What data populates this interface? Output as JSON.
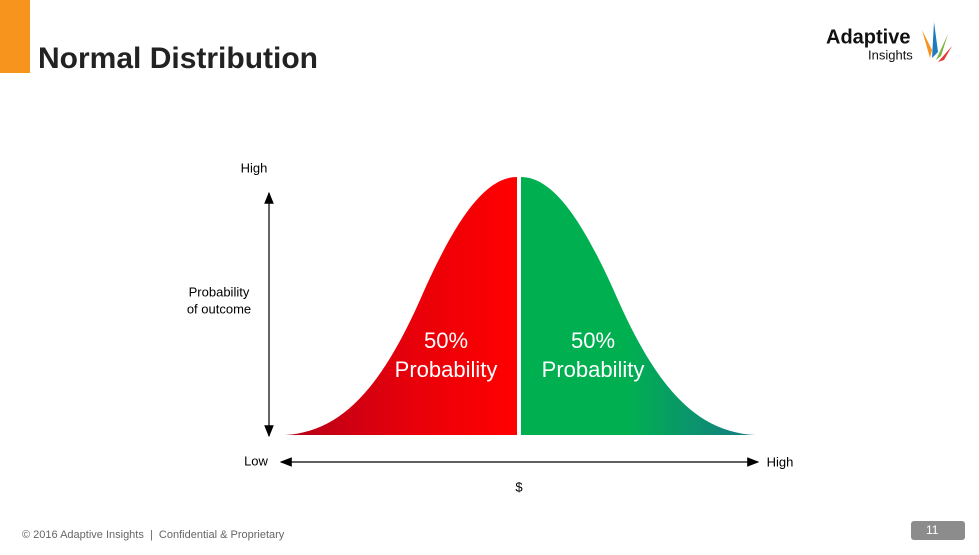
{
  "header": {
    "title": "Normal Distribution",
    "logo": {
      "line1": "Adaptive",
      "line2": "Insights"
    }
  },
  "diagram": {
    "y_axis": {
      "top": "High",
      "label": [
        "Probability",
        "of outcome"
      ]
    },
    "x_axis": {
      "left": "Low",
      "right": "High",
      "label": "$"
    },
    "regions": [
      {
        "percent": "50%",
        "text": "Probability"
      },
      {
        "percent": "50%",
        "text": "Probability"
      }
    ]
  },
  "footer": {
    "text": "© 2016 Adaptive Insights  |  Confidential & Proprietary",
    "page": "11"
  }
}
